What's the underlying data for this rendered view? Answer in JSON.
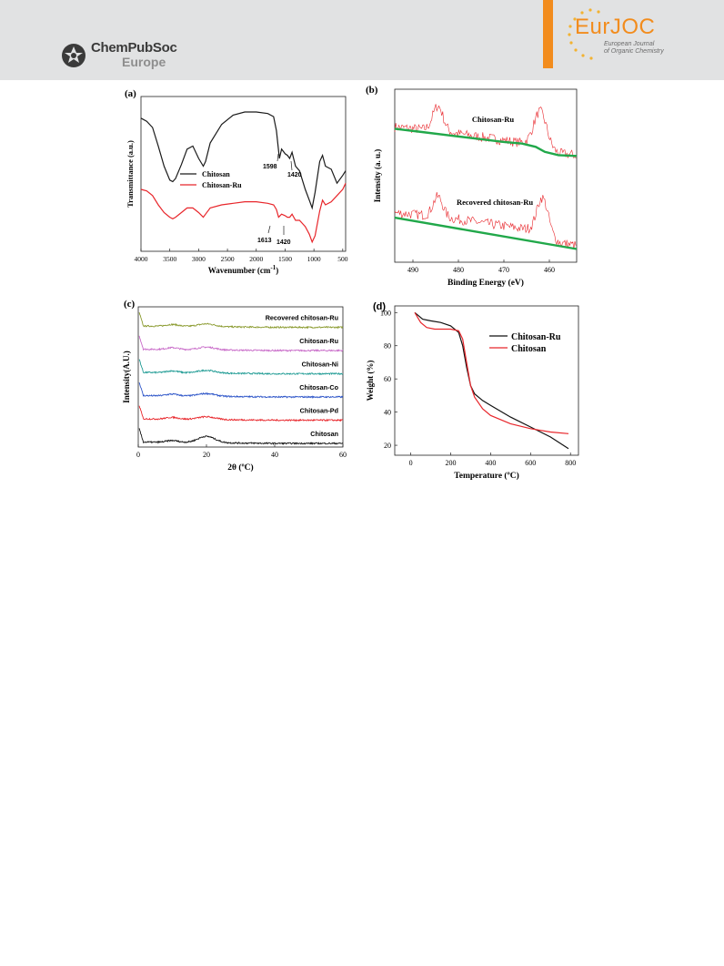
{
  "header": {
    "publisher_name": "ChemPubSoc",
    "publisher_sub": "Europe",
    "journal_short_a": "Eur",
    "journal_short_b": "JOC",
    "journal_sub_line1": "European Journal",
    "journal_sub_line2": "of Organic Chemistry",
    "colors": {
      "band": "#e1e2e3",
      "accent": "#f28c1d"
    }
  },
  "panels": {
    "a": {
      "label": "(a)",
      "chart_data": {
        "type": "line",
        "xlabel": "Wavenumber (cm",
        "xlabel_sup": "-1",
        "xlabel_close": ")",
        "ylabel": "Transmittance (a.u.)",
        "xlim": [
          4000,
          450
        ],
        "xticks": [
          4000,
          3500,
          3000,
          2500,
          2000,
          1500,
          1000,
          500
        ],
        "legend_position": "middle-left",
        "annotations": [
          {
            "text": "1598",
            "series": "Chitosan"
          },
          {
            "text": "1420",
            "series": "Chitosan"
          },
          {
            "text": "1613",
            "series": "Chitosan-Ru"
          },
          {
            "text": "1420",
            "series": "Chitosan-Ru"
          }
        ],
        "series": [
          {
            "name": "Chitosan",
            "color": "#1a1a1a",
            "x": [
              4000,
              3900,
              3800,
              3700,
              3600,
              3500,
              3450,
              3400,
              3300,
              3200,
              3100,
              3000,
              2920,
              2880,
              2800,
              2600,
              2400,
              2200,
              2000,
              1800,
              1700,
              1650,
              1598,
              1560,
              1500,
              1460,
              1420,
              1380,
              1320,
              1250,
              1150,
              1080,
              1030,
              980,
              900,
              850,
              800,
              700,
              600,
              500,
              450
            ],
            "y": [
              0.86,
              0.84,
              0.8,
              0.68,
              0.55,
              0.46,
              0.45,
              0.47,
              0.56,
              0.66,
              0.68,
              0.6,
              0.55,
              0.58,
              0.7,
              0.82,
              0.88,
              0.9,
              0.9,
              0.89,
              0.87,
              0.78,
              0.6,
              0.66,
              0.63,
              0.62,
              0.6,
              0.64,
              0.55,
              0.52,
              0.4,
              0.33,
              0.28,
              0.38,
              0.58,
              0.62,
              0.55,
              0.53,
              0.44,
              0.49,
              0.52
            ]
          },
          {
            "name": "Chitosan-Ru",
            "color": "#e8262b",
            "x": [
              4000,
              3900,
              3800,
              3700,
              3600,
              3500,
              3450,
              3400,
              3300,
              3200,
              3100,
              3000,
              2920,
              2880,
              2800,
              2600,
              2400,
              2200,
              2000,
              1800,
              1700,
              1650,
              1613,
              1560,
              1500,
              1460,
              1420,
              1380,
              1320,
              1250,
              1150,
              1080,
              1030,
              980,
              900,
              850,
              800,
              700,
              600,
              500,
              450
            ],
            "y": [
              0.4,
              0.39,
              0.36,
              0.3,
              0.25,
              0.22,
              0.21,
              0.22,
              0.25,
              0.28,
              0.28,
              0.25,
              0.22,
              0.24,
              0.28,
              0.3,
              0.31,
              0.32,
              0.32,
              0.31,
              0.3,
              0.27,
              0.22,
              0.24,
              0.23,
              0.22,
              0.22,
              0.24,
              0.2,
              0.2,
              0.16,
              0.11,
              0.06,
              0.1,
              0.26,
              0.33,
              0.3,
              0.32,
              0.36,
              0.4,
              0.44
            ]
          }
        ]
      }
    },
    "b": {
      "label": "(b)",
      "chart_data": {
        "type": "line",
        "xlabel": "Binding Energy (eV)",
        "ylabel": "Intensity (a. u.)",
        "xlim": [
          494,
          454
        ],
        "xticks": [
          490,
          480,
          470,
          460
        ],
        "series_labels": [
          "Chitosan-Ru",
          "Recovered chitosan-Ru"
        ],
        "series": [
          {
            "name": "Chitosan-Ru",
            "color": "#e8262b",
            "kind": "raw",
            "baseline_x": [
              494,
              485,
              475,
              465,
              458,
              454
            ],
            "baseline_y": [
              0.82,
              0.8,
              0.76,
              0.72,
              0.66,
              0.65
            ],
            "peaks": [
              {
                "center": 484.5,
                "height": 0.15,
                "width": 1.6
              },
              {
                "center": 462.0,
                "height": 0.22,
                "width": 2.0
              }
            ]
          },
          {
            "name": "Chitosan-Ru background",
            "color": "#21a84a",
            "kind": "fit",
            "x": [
              494,
              488,
              482,
              476,
              470,
              466,
              463,
              461,
              458,
              454
            ],
            "y": [
              0.81,
              0.79,
              0.77,
              0.75,
              0.73,
              0.72,
              0.7,
              0.67,
              0.65,
              0.645
            ]
          },
          {
            "name": "Recovered chitosan-Ru",
            "color": "#e8262b",
            "kind": "raw",
            "baseline_x": [
              494,
              485,
              475,
              465,
              458,
              454
            ],
            "baseline_y": [
              0.3,
              0.28,
              0.24,
              0.2,
              0.12,
              0.1
            ],
            "peaks": [
              {
                "center": 484.5,
                "height": 0.12,
                "width": 1.5
              },
              {
                "center": 461.5,
                "height": 0.23,
                "width": 1.8
              }
            ]
          },
          {
            "name": "Recovered chitosan-Ru background",
            "color": "#21a84a",
            "kind": "fit",
            "x": [
              494,
              454
            ],
            "y": [
              0.27,
              0.08
            ]
          }
        ]
      }
    },
    "c": {
      "label": "(c)",
      "chart_data": {
        "type": "line",
        "xlabel": "2θ (ºC)",
        "ylabel": "Intensity(A.U.)",
        "xlim": [
          0,
          60
        ],
        "xticks": [
          0,
          20,
          40,
          60
        ],
        "series": [
          {
            "name": "Recovered chitosan-Ru",
            "color": "#8a9a2e",
            "offset": 5
          },
          {
            "name": "Chitosan-Ru",
            "color": "#c86ac8",
            "offset": 4
          },
          {
            "name": "Chitosan-Ni",
            "color": "#1f9b94",
            "offset": 3
          },
          {
            "name": "Chitosan-Co",
            "color": "#2d55c8",
            "offset": 2
          },
          {
            "name": "Chitosan-Pd",
            "color": "#e8262b",
            "offset": 1
          },
          {
            "name": "Chitosan",
            "color": "#111111",
            "offset": 0
          }
        ],
        "peak_positions": [
          10,
          20
        ]
      }
    },
    "d": {
      "label": "(d)",
      "chart_data": {
        "type": "line",
        "xlabel": "Temperature (ºC)",
        "ylabel": "Weight (%)",
        "xlim": [
          -80,
          840
        ],
        "ylim": [
          14,
          104
        ],
        "xticks": [
          0,
          200,
          400,
          600,
          800
        ],
        "yticks": [
          20,
          40,
          60,
          80,
          100
        ],
        "legend_position": "top-right",
        "series": [
          {
            "name": "Chitosan-Ru",
            "color": "#111111",
            "x": [
              20,
              60,
              100,
              150,
              200,
              240,
              260,
              280,
              300,
              320,
              360,
              400,
              500,
              600,
              700,
              790
            ],
            "y": [
              100,
              96,
              95,
              94,
              92,
              88,
              80,
              67,
              56,
              51,
              47,
              44,
              37,
              31,
              25,
              18
            ]
          },
          {
            "name": "Chitosan",
            "color": "#e8262b",
            "x": [
              20,
              50,
              80,
              120,
              200,
              240,
              260,
              280,
              300,
              320,
              360,
              400,
              500,
              600,
              700,
              790
            ],
            "y": [
              100,
              94,
              91,
              90,
              90,
              89,
              84,
              70,
              56,
              49,
              42,
              38,
              33,
              30,
              28,
              27
            ]
          }
        ]
      }
    }
  }
}
